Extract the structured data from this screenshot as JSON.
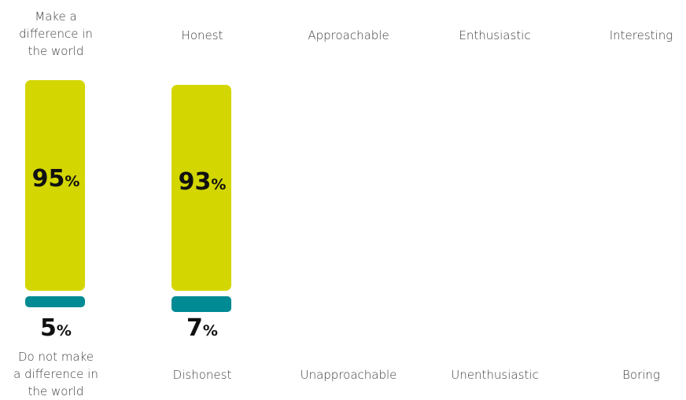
{
  "chart_data": {
    "type": "bar",
    "categories": [
      {
        "positive": "Make a difference in the world",
        "negative": "Do not make a difference in the world",
        "positive_lines": [
          "Make a",
          "difference in",
          "the world"
        ],
        "negative_lines": [
          "Do not make",
          "a difference in",
          "the world"
        ],
        "positive_value": 95,
        "negative_value": 5
      },
      {
        "positive": "Honest",
        "negative": "Dishonest",
        "positive_lines": [
          "Honest"
        ],
        "negative_lines": [
          "Dishonest"
        ],
        "positive_value": 93,
        "negative_value": 7
      },
      {
        "positive": "Approachable",
        "negative": "Unapproachable",
        "positive_lines": [
          "Approachable"
        ],
        "negative_lines": [
          "Unapproachable"
        ],
        "positive_value": null,
        "negative_value": null
      },
      {
        "positive": "Enthusiastic",
        "negative": "Unenthusiastic",
        "positive_lines": [
          "Enthusiastic"
        ],
        "negative_lines": [
          "Unenthusiastic"
        ],
        "positive_value": null,
        "negative_value": null
      },
      {
        "positive": "Interesting",
        "negative": "Boring",
        "positive_lines": [
          "Interesting"
        ],
        "negative_lines": [
          "Boring"
        ],
        "positive_value": null,
        "negative_value": null
      }
    ],
    "unit": "%",
    "colors": {
      "positive": "#d3d600",
      "negative": "#008a93"
    }
  }
}
